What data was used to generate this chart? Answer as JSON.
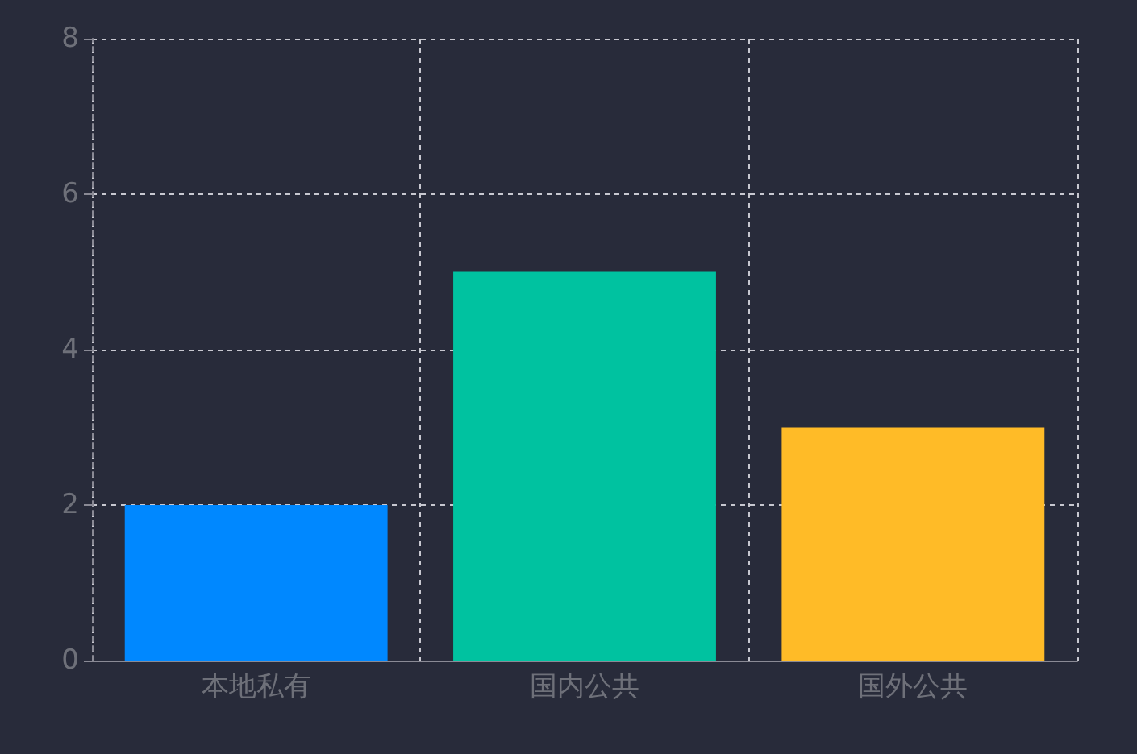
{
  "chart_data": {
    "type": "bar",
    "categories": [
      "本地私有",
      "国内公共",
      "国外公共"
    ],
    "values": [
      2,
      5,
      3
    ],
    "colors": [
      "#0088ff",
      "#00c2a0",
      "#ffbb27"
    ],
    "ylim": [
      0,
      8
    ],
    "yticks": [
      0,
      2,
      4,
      6,
      8
    ],
    "grid": true
  }
}
